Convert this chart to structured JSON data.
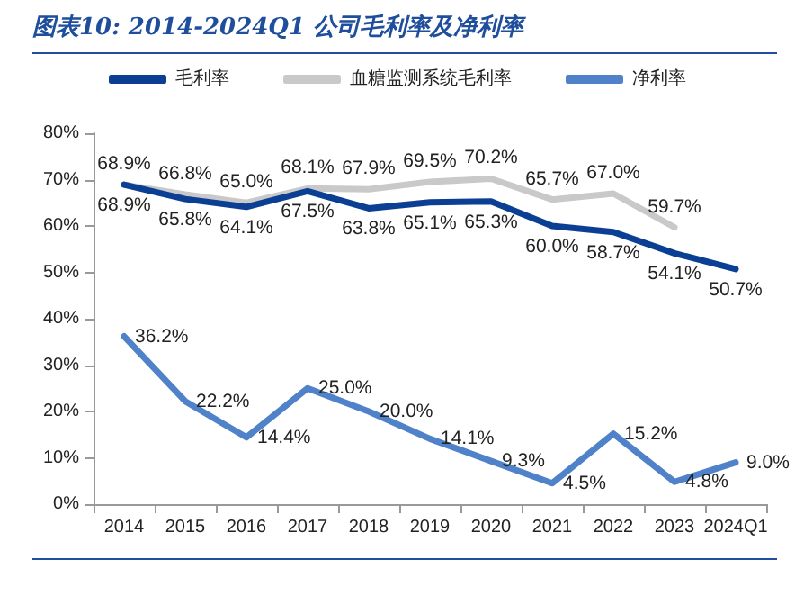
{
  "chart_data": {
    "type": "line",
    "title": "图表10:  2014-2024Q1 公司毛利率及净利率",
    "categories": [
      "2014",
      "2015",
      "2016",
      "2017",
      "2018",
      "2019",
      "2020",
      "2021",
      "2022",
      "2023",
      "2024Q1"
    ],
    "series": [
      {
        "name": "毛利率",
        "color": "#0b3f93",
        "values": [
          68.9,
          65.8,
          64.1,
          67.5,
          63.8,
          65.1,
          65.3,
          60.0,
          58.7,
          54.1,
          50.7
        ],
        "value_labels": [
          "68.9%",
          "65.8%",
          "64.1%",
          "67.5%",
          "63.8%",
          "65.1%",
          "65.3%",
          "60.0%",
          "58.7%",
          "54.1%",
          "50.7%"
        ]
      },
      {
        "name": "血糖监测系统毛利率",
        "color": "#c9c9c9",
        "values": [
          68.9,
          66.8,
          65.0,
          68.1,
          67.9,
          69.5,
          70.2,
          65.7,
          67.0,
          59.7,
          null
        ],
        "value_labels": [
          "68.9%",
          "66.8%",
          "65.0%",
          "68.1%",
          "67.9%",
          "69.5%",
          "70.2%",
          "65.7%",
          "67.0%",
          "59.7%",
          null
        ]
      },
      {
        "name": "净利率",
        "color": "#4f82c9",
        "values": [
          36.2,
          22.2,
          14.4,
          25.0,
          20.0,
          14.1,
          9.3,
          4.5,
          15.2,
          4.8,
          9.0
        ],
        "value_labels": [
          "36.2%",
          "22.2%",
          "14.4%",
          "25.0%",
          "20.0%",
          "14.1%",
          "9.3%",
          "4.5%",
          "15.2%",
          "4.8%",
          "9.0%"
        ]
      }
    ],
    "ylim": [
      0,
      80
    ],
    "yticks": [
      {
        "value": 0,
        "label": "0%"
      },
      {
        "value": 10,
        "label": "10%"
      },
      {
        "value": 20,
        "label": "20%"
      },
      {
        "value": 30,
        "label": "30%"
      },
      {
        "value": 40,
        "label": "40%"
      },
      {
        "value": 50,
        "label": "50%"
      },
      {
        "value": 60,
        "label": "60%"
      },
      {
        "value": 70,
        "label": "70%"
      },
      {
        "value": 80,
        "label": "80%"
      }
    ],
    "grid": false,
    "legend": "top",
    "marker": "none",
    "line_style": "solid"
  }
}
